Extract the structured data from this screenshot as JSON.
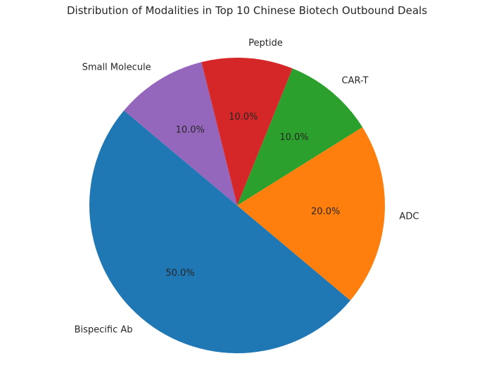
{
  "chart_data": {
    "type": "pie",
    "title": "Distribution of Modalities in Top 10 Chinese Biotech Outbound Deals",
    "start_angle_deg": 140,
    "direction": "counterclockwise",
    "slices": [
      {
        "label": "Bispecific Ab",
        "value": 50.0,
        "pct_label": "50.0%",
        "color": "#1f77b4"
      },
      {
        "label": "ADC",
        "value": 20.0,
        "pct_label": "20.0%",
        "color": "#ff7f0e"
      },
      {
        "label": "CAR-T",
        "value": 10.0,
        "pct_label": "10.0%",
        "color": "#2ca02c"
      },
      {
        "label": "Peptide",
        "value": 10.0,
        "pct_label": "10.0%",
        "color": "#d62728"
      },
      {
        "label": "Small Molecule",
        "value": 10.0,
        "pct_label": "10.0%",
        "color": "#9467bd"
      }
    ]
  }
}
